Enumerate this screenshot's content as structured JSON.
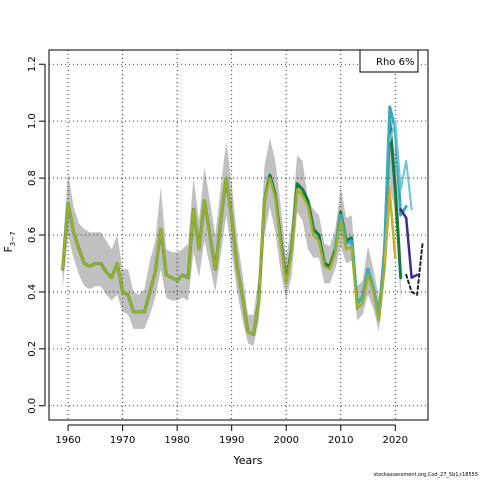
{
  "chart_data": {
    "type": "line",
    "xlabel": "Years",
    "ylabel_main": "F",
    "ylabel_sub": "3−7",
    "xlim": [
      1956.5,
      2026
    ],
    "ylim": [
      -0.05,
      1.25
    ],
    "xticks": [
      1960,
      1970,
      1980,
      1990,
      2000,
      2010,
      2020
    ],
    "yticks": [
      0.0,
      0.2,
      0.4,
      0.6,
      0.8,
      1.0,
      1.2
    ],
    "ytick_labels": [
      "0.0",
      "0.2",
      "0.4",
      "0.6",
      "0.8",
      "1.0",
      "1.2"
    ],
    "grid": true,
    "legend_text": "Rho 6%",
    "legend_position": "top-right",
    "footer_text": "stockassessment.org,Cod_27_5b1,r18555",
    "band": {
      "color": "#c0c0c0",
      "x": [
        1959,
        1960,
        1961,
        1962,
        1963,
        1964,
        1965,
        1966,
        1967,
        1968,
        1969,
        1970,
        1971,
        1972,
        1973,
        1974,
        1975,
        1976,
        1977,
        1978,
        1979,
        1980,
        1981,
        1982,
        1983,
        1984,
        1985,
        1986,
        1987,
        1988,
        1989,
        1990,
        1991,
        1992,
        1993,
        1994,
        1995,
        1996,
        1997,
        1998,
        1999,
        2000,
        2001,
        2002,
        2003,
        2004,
        2005,
        2006,
        2007,
        2008,
        2009,
        2010,
        2011,
        2012,
        2013,
        2014,
        2015,
        2016,
        2017,
        2018,
        2019,
        2020,
        2021
      ],
      "lower": [
        0.41,
        0.6,
        0.52,
        0.46,
        0.42,
        0.41,
        0.42,
        0.42,
        0.39,
        0.37,
        0.39,
        0.33,
        0.32,
        0.27,
        0.27,
        0.27,
        0.32,
        0.38,
        0.48,
        0.38,
        0.37,
        0.37,
        0.38,
        0.37,
        0.54,
        0.45,
        0.58,
        0.49,
        0.4,
        0.53,
        0.67,
        0.54,
        0.4,
        0.3,
        0.22,
        0.21,
        0.3,
        0.6,
        0.7,
        0.61,
        0.47,
        0.37,
        0.46,
        0.68,
        0.65,
        0.55,
        0.52,
        0.52,
        0.43,
        0.43,
        0.48,
        0.56,
        0.5,
        0.51,
        0.3,
        0.32,
        0.39,
        0.34,
        0.26,
        0.45,
        0.78,
        0.67,
        0.37
      ],
      "upper": [
        0.55,
        0.82,
        0.7,
        0.64,
        0.62,
        0.61,
        0.61,
        0.61,
        0.58,
        0.55,
        0.6,
        0.48,
        0.48,
        0.4,
        0.39,
        0.41,
        0.51,
        0.58,
        0.77,
        0.55,
        0.54,
        0.54,
        0.55,
        0.57,
        0.8,
        0.65,
        0.84,
        0.72,
        0.6,
        0.77,
        0.93,
        0.78,
        0.59,
        0.46,
        0.32,
        0.32,
        0.46,
        0.84,
        0.94,
        0.86,
        0.7,
        0.52,
        0.64,
        0.88,
        0.86,
        0.72,
        0.69,
        0.67,
        0.57,
        0.56,
        0.62,
        0.77,
        0.66,
        0.67,
        0.42,
        0.44,
        0.56,
        0.48,
        0.38,
        0.62,
        1.0,
        0.88,
        0.55
      ]
    },
    "series": [
      {
        "color": "#127a3c",
        "width": 3,
        "x": [
          1959,
          1960,
          1961,
          1962,
          1963,
          1964,
          1965,
          1966,
          1967,
          1968,
          1969,
          1970,
          1971,
          1972,
          1973,
          1974,
          1975,
          1976,
          1977,
          1978,
          1979,
          1980,
          1981,
          1982,
          1983,
          1984,
          1985,
          1986,
          1987,
          1988,
          1989,
          1990,
          1991,
          1992,
          1993,
          1994,
          1995,
          1996,
          1997,
          1998,
          1999,
          2000,
          2001,
          2002,
          2003,
          2004,
          2005,
          2006,
          2007,
          2008,
          2009,
          2010,
          2011,
          2012,
          2013,
          2014,
          2015,
          2016,
          2017,
          2018,
          2019,
          2020,
          2021
        ],
        "y": [
          0.48,
          0.71,
          0.61,
          0.55,
          0.5,
          0.49,
          0.5,
          0.5,
          0.47,
          0.45,
          0.5,
          0.4,
          0.39,
          0.33,
          0.33,
          0.33,
          0.4,
          0.47,
          0.62,
          0.46,
          0.45,
          0.44,
          0.46,
          0.45,
          0.69,
          0.55,
          0.72,
          0.6,
          0.48,
          0.65,
          0.8,
          0.66,
          0.49,
          0.38,
          0.26,
          0.25,
          0.37,
          0.72,
          0.81,
          0.74,
          0.58,
          0.44,
          0.55,
          0.78,
          0.76,
          0.72,
          0.62,
          0.6,
          0.5,
          0.49,
          0.55,
          0.68,
          0.58,
          0.59,
          0.36,
          0.38,
          0.48,
          0.41,
          0.31,
          0.53,
          1.0,
          0.76,
          0.45
        ]
      },
      {
        "color": "#3aa9bd",
        "width": 3,
        "x": [
          2009,
          2010,
          2011,
          2012,
          2013,
          2014,
          2015,
          2016,
          2017,
          2018,
          2019,
          2020,
          2021,
          2022
        ],
        "y": [
          0.55,
          0.67,
          0.57,
          0.58,
          0.36,
          0.38,
          0.48,
          0.41,
          0.31,
          0.53,
          1.05,
          0.97,
          0.67,
          0.7
        ]
      },
      {
        "color": "#6fc2d8",
        "width": 2,
        "x": [
          2019,
          2020,
          2021,
          2022,
          2023
        ],
        "y": [
          0.93,
          1.0,
          0.76,
          0.86,
          0.69
        ]
      },
      {
        "color": "#3a2f8a",
        "width": 2.5,
        "x": [
          2021,
          2022,
          2023,
          2024
        ],
        "y": [
          0.69,
          0.66,
          0.45,
          0.46
        ]
      },
      {
        "color": "#9ab02a",
        "width": 2.5,
        "x": [
          1959,
          1960,
          1961,
          1962,
          1963,
          1964,
          1965,
          1966,
          1967,
          1968,
          1969,
          1970,
          1971,
          1972,
          1973,
          1974,
          1975,
          1976,
          1977,
          1978,
          1979,
          1980,
          1981,
          1982,
          1983,
          1984,
          1985,
          1986,
          1987,
          1988,
          1989,
          1990,
          1991,
          1992,
          1993,
          1994,
          1995,
          1996,
          1997,
          1998,
          1999,
          2000,
          2001,
          2002,
          2003,
          2004,
          2005,
          2006,
          2007,
          2008,
          2009,
          2010,
          2011,
          2012,
          2013,
          2014,
          2015,
          2016,
          2017,
          2018,
          2019,
          2020
        ],
        "y": [
          0.48,
          0.71,
          0.61,
          0.55,
          0.5,
          0.49,
          0.5,
          0.5,
          0.47,
          0.45,
          0.5,
          0.4,
          0.39,
          0.33,
          0.33,
          0.33,
          0.4,
          0.47,
          0.62,
          0.46,
          0.45,
          0.44,
          0.46,
          0.45,
          0.69,
          0.55,
          0.72,
          0.6,
          0.48,
          0.65,
          0.8,
          0.66,
          0.49,
          0.38,
          0.26,
          0.25,
          0.37,
          0.72,
          0.8,
          0.73,
          0.57,
          0.43,
          0.54,
          0.76,
          0.74,
          0.7,
          0.6,
          0.58,
          0.49,
          0.48,
          0.54,
          0.65,
          0.55,
          0.56,
          0.34,
          0.36,
          0.46,
          0.4,
          0.3,
          0.48,
          0.75,
          0.52
        ]
      },
      {
        "color": "#e3ac2a",
        "width": 1.5,
        "x": [
          2018,
          2019,
          2020
        ],
        "y": [
          0.5,
          0.77,
          0.52
        ]
      },
      {
        "color": "#222222",
        "width": 2,
        "dash": "3,3",
        "x": [
          2022,
          2023,
          2024,
          2025
        ],
        "y": [
          0.46,
          0.4,
          0.39,
          0.57
        ]
      }
    ]
  }
}
